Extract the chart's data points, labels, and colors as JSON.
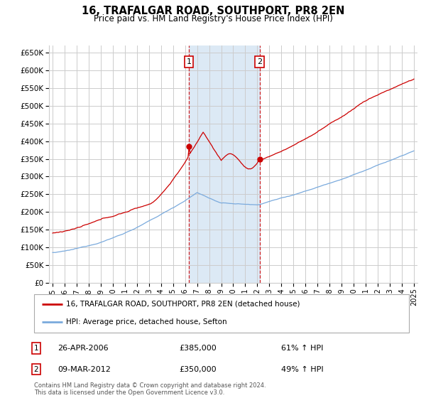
{
  "title": "16, TRAFALGAR ROAD, SOUTHPORT, PR8 2EN",
  "subtitle": "Price paid vs. HM Land Registry's House Price Index (HPI)",
  "ylim": [
    0,
    670000
  ],
  "yticks": [
    0,
    50000,
    100000,
    150000,
    200000,
    250000,
    300000,
    350000,
    400000,
    450000,
    500000,
    550000,
    600000,
    650000
  ],
  "ytick_labels": [
    "£0",
    "£50K",
    "£100K",
    "£150K",
    "£200K",
    "£250K",
    "£300K",
    "£350K",
    "£400K",
    "£450K",
    "£500K",
    "£550K",
    "£600K",
    "£650K"
  ],
  "background_color": "#ffffff",
  "grid_color": "#cccccc",
  "sale1_date": 2006.32,
  "sale1_price": 385000,
  "sale2_date": 2012.19,
  "sale2_price": 350000,
  "highlight_color": "#dce9f5",
  "red_line_color": "#cc0000",
  "blue_line_color": "#7aaadd",
  "legend_label_red": "16, TRAFALGAR ROAD, SOUTHPORT, PR8 2EN (detached house)",
  "legend_label_blue": "HPI: Average price, detached house, Sefton",
  "annotation1_date": "26-APR-2006",
  "annotation1_price": "£385,000",
  "annotation1_hpi": "61% ↑ HPI",
  "annotation2_date": "09-MAR-2012",
  "annotation2_price": "£350,000",
  "annotation2_hpi": "49% ↑ HPI",
  "footer": "Contains HM Land Registry data © Crown copyright and database right 2024.\nThis data is licensed under the Open Government Licence v3.0."
}
